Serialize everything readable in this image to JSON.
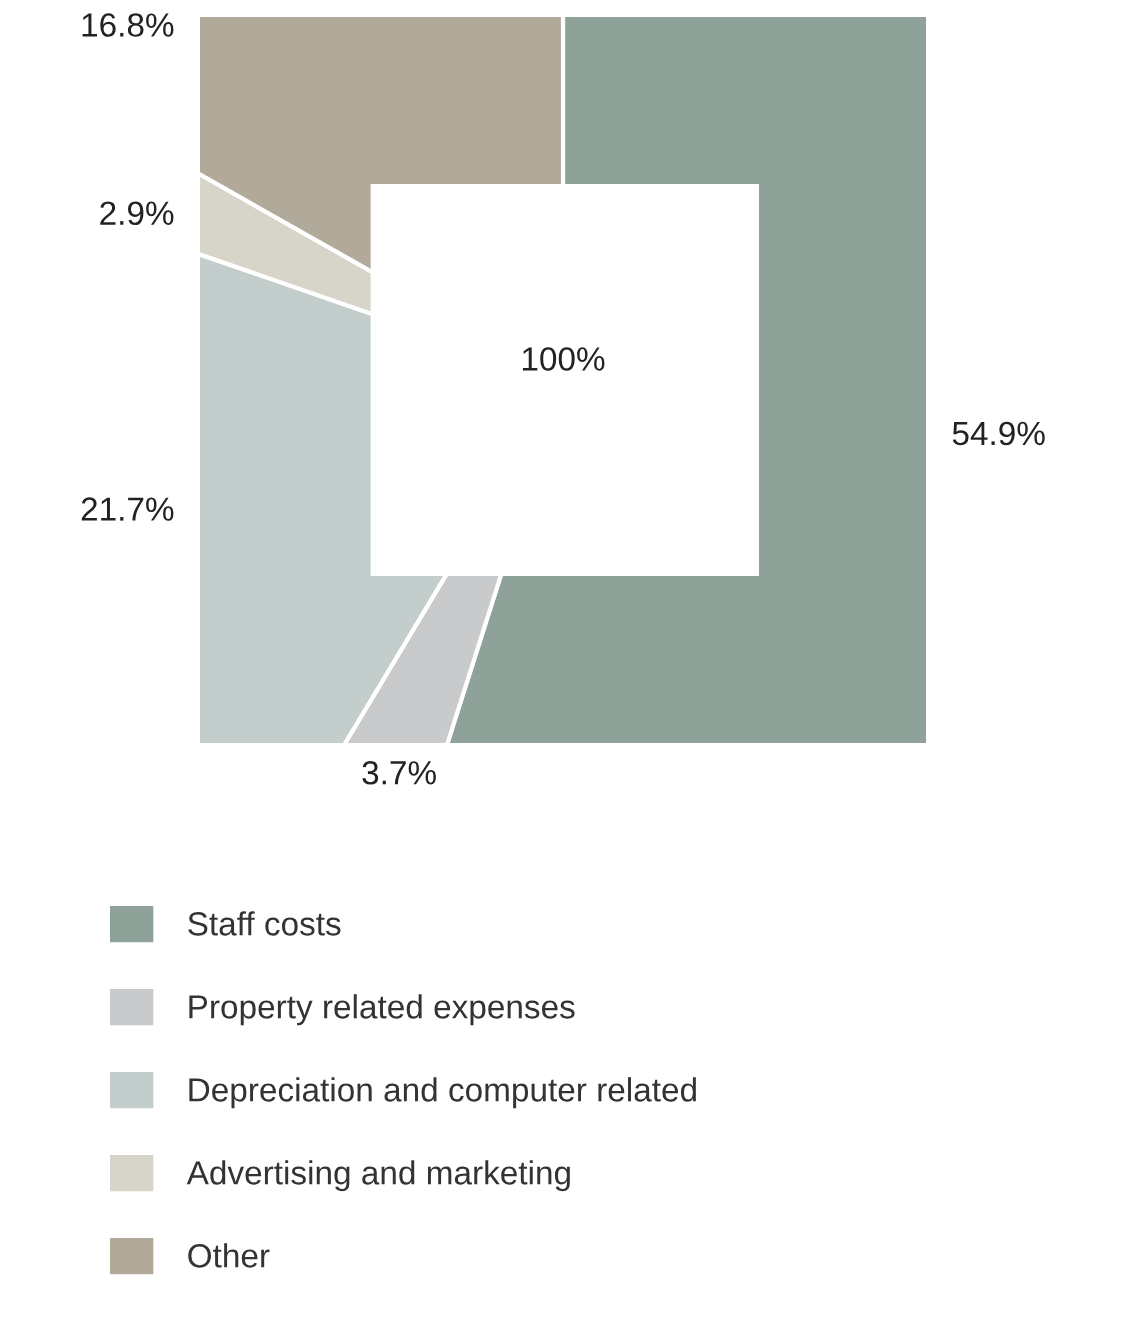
{
  "chart_data": {
    "type": "donut",
    "categories": [
      "Staff costs",
      "Property related expenses",
      "Depreciation and computer related",
      "Advertising and marketing",
      "Other"
    ],
    "values": [
      54.9,
      3.7,
      21.7,
      2.9,
      16.8
    ],
    "colors": [
      "#8fa29a",
      "#c9cacc",
      "#c3cdcc",
      "#d7d4ca",
      "#b1aa9b"
    ],
    "value_labels": [
      "54.9%",
      "3.7%",
      "21.7%",
      "2.9%",
      "16.8%"
    ],
    "annotations": [
      "100%"
    ],
    "legend": "bottom"
  }
}
